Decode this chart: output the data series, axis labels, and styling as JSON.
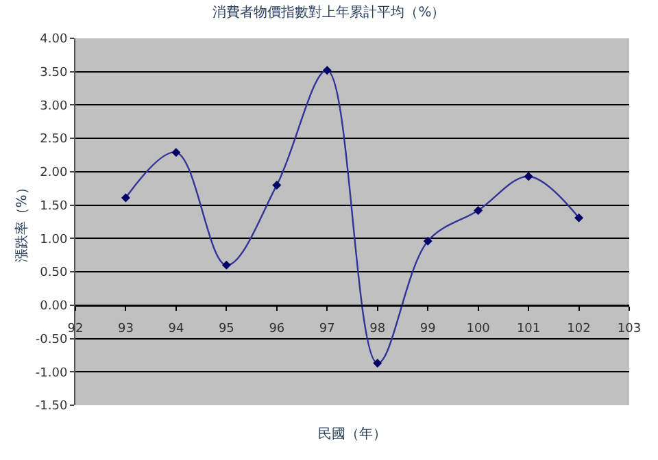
{
  "chart_data": {
    "type": "line",
    "title": "消費者物價指數對上年累計平均（%）",
    "xlabel": "民國（年）",
    "ylabel": "漲跌率（%）",
    "x": [
      93,
      94,
      95,
      96,
      97,
      98,
      99,
      100,
      101,
      102
    ],
    "series": [
      {
        "color": "#333399",
        "values": [
          1.61,
          2.29,
          0.6,
          1.8,
          3.52,
          -0.87,
          0.96,
          1.42,
          1.93,
          1.31
        ]
      }
    ],
    "xlim": [
      92,
      103
    ],
    "xticks": [
      92,
      93,
      94,
      95,
      96,
      97,
      98,
      99,
      100,
      101,
      102,
      103
    ],
    "ylim": [
      -1.5,
      4.0
    ],
    "yticks": [
      {
        "value": -1.5,
        "label": "-1.50"
      },
      {
        "value": -1.0,
        "label": "-1.00"
      },
      {
        "value": -0.5,
        "label": "-0.50"
      },
      {
        "value": 0,
        "label": "0.00"
      },
      {
        "value": 0.5,
        "label": "0.50"
      },
      {
        "value": 1.0,
        "label": "1.00"
      },
      {
        "value": 1.5,
        "label": "1.50"
      },
      {
        "value": 2.0,
        "label": "2.00"
      },
      {
        "value": 2.5,
        "label": "2.50"
      },
      {
        "value": 3.0,
        "label": "3.00"
      },
      {
        "value": 3.5,
        "label": "3.50"
      },
      {
        "value": 4.0,
        "label": "4.00"
      }
    ],
    "grid": "y",
    "marker": "diamond",
    "line_style": "solid"
  }
}
